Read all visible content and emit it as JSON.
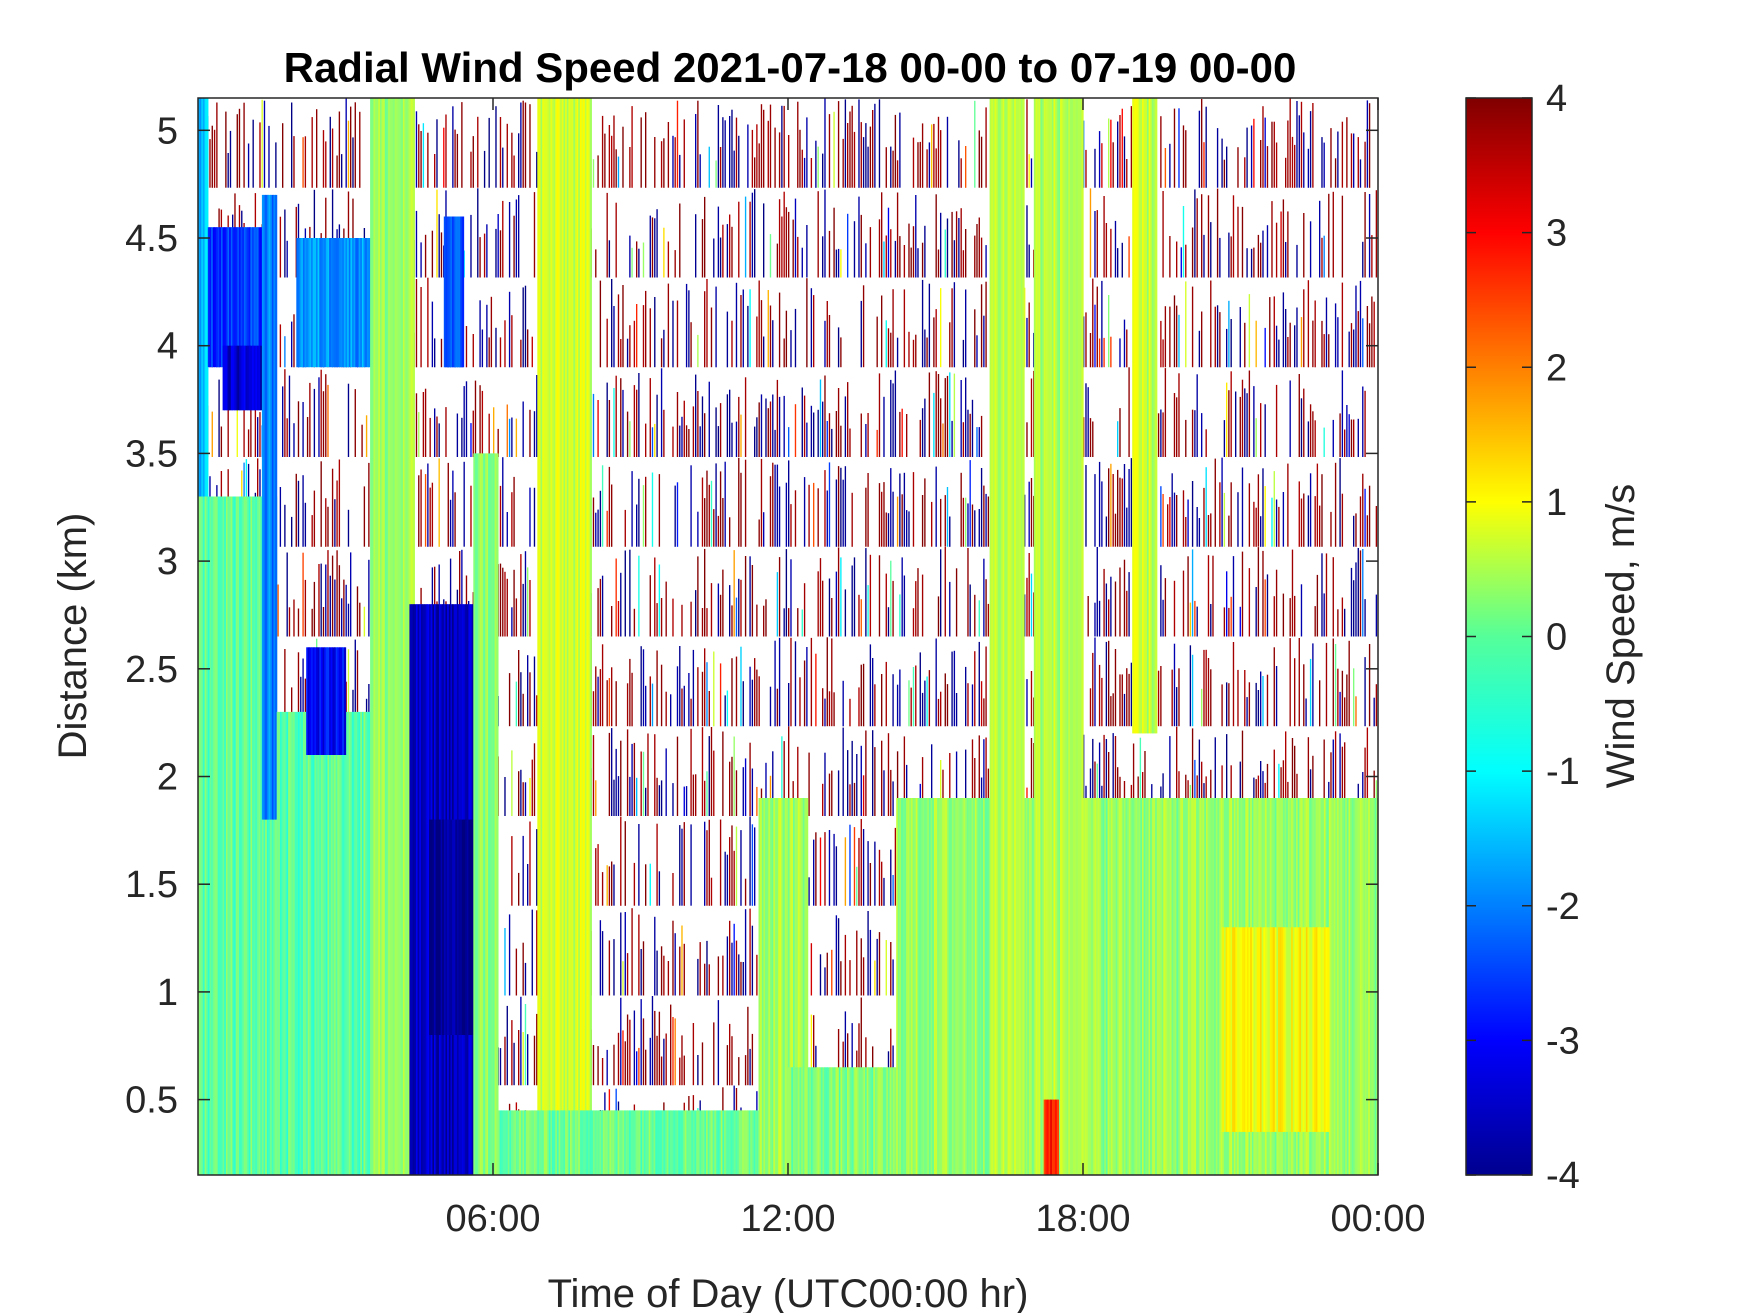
{
  "chart_data": {
    "type": "heatmap",
    "title": "Radial Wind Speed 2021-07-18 00-00 to 07-19 00-00",
    "xlabel": "Time of Day (UTC00:00 hr)",
    "ylabel": "Distance (km)",
    "colorbar_label": "Wind Speed, m/s",
    "colormap": "jet",
    "x_ticks": [
      {
        "value": 6,
        "label": "06:00"
      },
      {
        "value": 12,
        "label": "12:00"
      },
      {
        "value": 18,
        "label": "18:00"
      },
      {
        "value": 24,
        "label": "00:00"
      }
    ],
    "y_ticks": [
      {
        "value": 0.5,
        "label": "0.5"
      },
      {
        "value": 1,
        "label": "1"
      },
      {
        "value": 1.5,
        "label": "1.5"
      },
      {
        "value": 2,
        "label": "2"
      },
      {
        "value": 2.5,
        "label": "2.5"
      },
      {
        "value": 3,
        "label": "3"
      },
      {
        "value": 3.5,
        "label": "3.5"
      },
      {
        "value": 4,
        "label": "4"
      },
      {
        "value": 4.5,
        "label": "4.5"
      },
      {
        "value": 5,
        "label": "5"
      }
    ],
    "colorbar_ticks": [
      {
        "value": 4,
        "label": "4"
      },
      {
        "value": 3,
        "label": "3"
      },
      {
        "value": 2,
        "label": "2"
      },
      {
        "value": 1,
        "label": "1"
      },
      {
        "value": 0,
        "label": "0"
      },
      {
        "value": -1,
        "label": "-1"
      },
      {
        "value": -2,
        "label": "-2"
      },
      {
        "value": -3,
        "label": "-3"
      },
      {
        "value": -4,
        "label": "-4"
      }
    ],
    "xlim": [
      0,
      24
    ],
    "ylim": [
      0.15,
      5.15
    ],
    "clim": [
      -4,
      4
    ],
    "regions": [
      {
        "x": [
          0,
          1.6
        ],
        "y": [
          0.15,
          3.3
        ],
        "value": -0.2
      },
      {
        "x": [
          0,
          0.2
        ],
        "y": [
          3.3,
          5.15
        ],
        "value": -1.5
      },
      {
        "x": [
          0.2,
          1.5
        ],
        "y": [
          3.9,
          4.55
        ],
        "value": -2.6
      },
      {
        "x": [
          0.5,
          1.4
        ],
        "y": [
          3.7,
          4.0
        ],
        "value": -3.4
      },
      {
        "x": [
          1.3,
          1.6
        ],
        "y": [
          1.8,
          4.7
        ],
        "value": -2.0
      },
      {
        "x": [
          1.6,
          3.5
        ],
        "y": [
          0.15,
          2.3
        ],
        "value": -0.3
      },
      {
        "x": [
          2.2,
          3.0
        ],
        "y": [
          2.1,
          2.6
        ],
        "value": -3.0
      },
      {
        "x": [
          2.0,
          3.5
        ],
        "y": [
          3.9,
          4.5
        ],
        "value": -1.8
      },
      {
        "x": [
          3.5,
          4.4
        ],
        "y": [
          0.15,
          5.15
        ],
        "value": 0.2
      },
      {
        "x": [
          4.3,
          5.6
        ],
        "y": [
          0.15,
          2.8
        ],
        "value": -3.5
      },
      {
        "x": [
          4.7,
          5.6
        ],
        "y": [
          0.8,
          1.8
        ],
        "value": -3.9
      },
      {
        "x": [
          5.0,
          5.4
        ],
        "y": [
          3.9,
          4.6
        ],
        "value": -2.4
      },
      {
        "x": [
          5.6,
          6.1
        ],
        "y": [
          0.15,
          3.5
        ],
        "value": 0.1
      },
      {
        "x": [
          6.9,
          8.0
        ],
        "y": [
          0.15,
          5.15
        ],
        "value": 0.6
      },
      {
        "x": [
          6.1,
          24
        ],
        "y": [
          0.15,
          0.45
        ],
        "value": -0.1
      },
      {
        "x": [
          11.4,
          12.4
        ],
        "y": [
          0.15,
          1.9
        ],
        "value": 0.3
      },
      {
        "x": [
          12.0,
          14.2
        ],
        "y": [
          0.15,
          0.65
        ],
        "value": 0.0
      },
      {
        "x": [
          14.2,
          24
        ],
        "y": [
          0.15,
          1.9
        ],
        "value": 0.2
      },
      {
        "x": [
          16.1,
          16.8
        ],
        "y": [
          0.15,
          5.15
        ],
        "value": 0.5
      },
      {
        "x": [
          17.0,
          18.0
        ],
        "y": [
          0.15,
          5.15
        ],
        "value": 0.4
      },
      {
        "x": [
          19.0,
          19.5
        ],
        "y": [
          2.2,
          5.15
        ],
        "value": 0.5
      },
      {
        "x": [
          20.8,
          23.0
        ],
        "y": [
          0.35,
          1.3
        ],
        "value": 0.9
      },
      {
        "x": [
          17.2,
          17.5
        ],
        "y": [
          0.15,
          0.5
        ],
        "value": 2.8
      }
    ],
    "sparse_region": {
      "x": [
        0,
        24
      ],
      "y": [
        0.15,
        5.15
      ],
      "note": "speckled noise"
    }
  }
}
